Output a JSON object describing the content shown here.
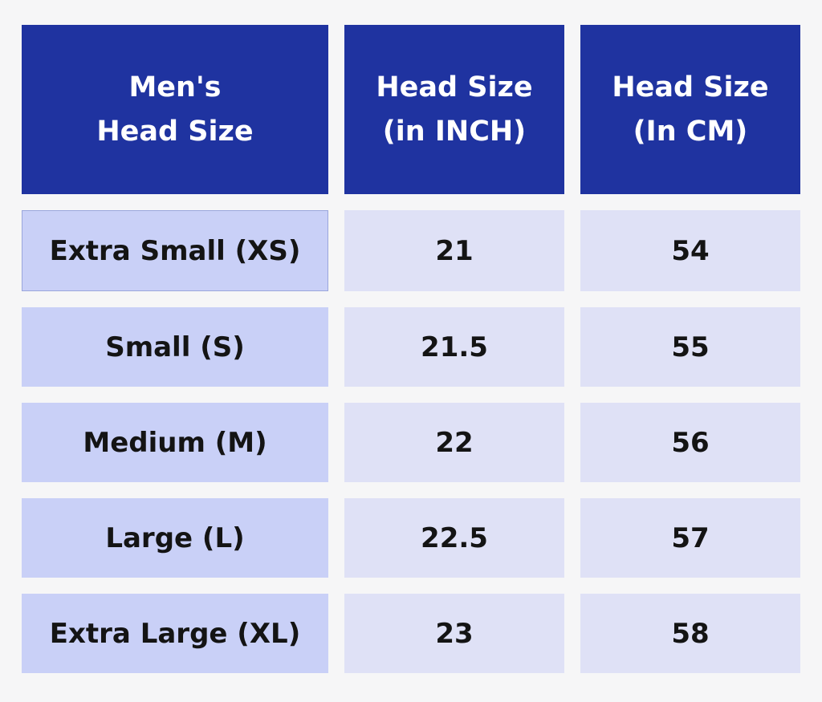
{
  "table": {
    "headers": [
      "Men's\nHead Size",
      "Head Size\n(in INCH)",
      "Head Size\n(In CM)"
    ],
    "rows": [
      {
        "size": "Extra Small (XS)",
        "inch": "21",
        "cm": "54"
      },
      {
        "size": "Small (S)",
        "inch": "21.5",
        "cm": "55"
      },
      {
        "size": "Medium (M)",
        "inch": "22",
        "cm": "56"
      },
      {
        "size": "Large (L)",
        "inch": "22.5",
        "cm": "57"
      },
      {
        "size": "Extra Large (XL)",
        "inch": "23",
        "cm": "58"
      }
    ]
  },
  "colors": {
    "header_bg": "#1f33a0",
    "size_cell_bg": "#c9d0f7",
    "value_cell_bg": "#dfe1f6",
    "page_bg": "#f6f6f7"
  }
}
